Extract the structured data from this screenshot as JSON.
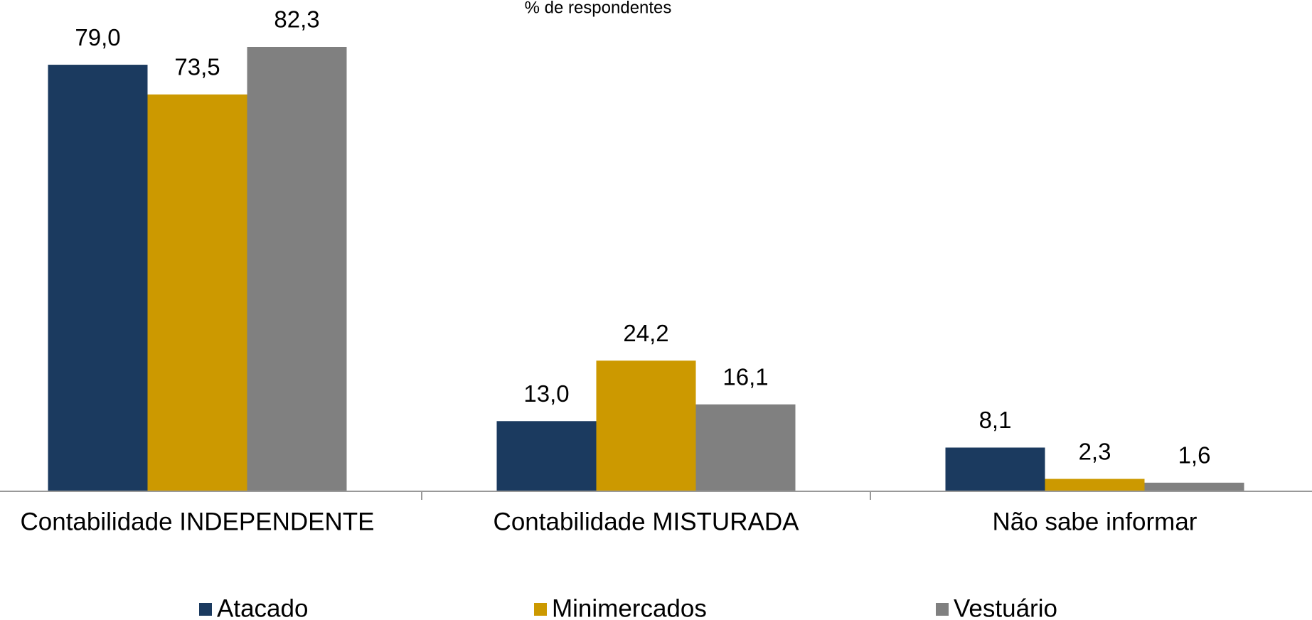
{
  "chart_data": {
    "type": "bar",
    "subtitle": "% de respondentes",
    "categories": [
      "Contabilidade INDEPENDENTE",
      "Contabilidade MISTURADA",
      "Não sabe informar"
    ],
    "series": [
      {
        "name": "Atacado",
        "color": "#1b3a5f",
        "values": [
          79.0,
          13.0,
          8.1
        ],
        "value_labels": [
          "79,0",
          "13,0",
          "8,1"
        ]
      },
      {
        "name": "Minimercados",
        "color": "#cc9900",
        "values": [
          73.5,
          24.2,
          2.3
        ],
        "value_labels": [
          "73,5",
          "24,2",
          "2,3"
        ]
      },
      {
        "name": "Vestuário",
        "color": "#808080",
        "values": [
          82.3,
          16.1,
          1.6
        ],
        "value_labels": [
          "82,3",
          "16,1",
          "1,6"
        ]
      }
    ],
    "legend": "bottom"
  }
}
